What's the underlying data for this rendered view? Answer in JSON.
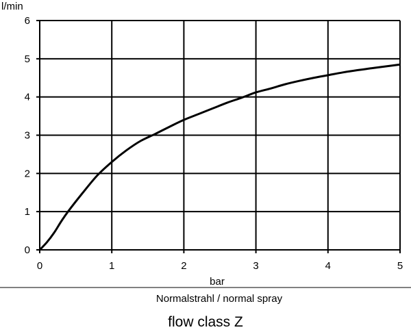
{
  "chart_data": {
    "type": "line",
    "xlabel": "bar",
    "ylabel": "l/min",
    "xlim": [
      0,
      5
    ],
    "ylim": [
      0,
      6
    ],
    "xticks": [
      "0",
      "1",
      "2",
      "3",
      "4",
      "5"
    ],
    "yticks": [
      "0",
      "1",
      "2",
      "3",
      "4",
      "5",
      "6"
    ],
    "grid": true,
    "series": [
      {
        "x": [
          0,
          0.1,
          0.2,
          0.3,
          0.4,
          0.6,
          0.8,
          1.0,
          1.2,
          1.4,
          1.6,
          1.8,
          2.0,
          2.2,
          2.4,
          2.6,
          2.8,
          3.0,
          3.2,
          3.4,
          3.6,
          3.8,
          4.0,
          4.2,
          4.4,
          4.6,
          4.8,
          5.0
        ],
        "y": [
          0,
          0.2,
          0.45,
          0.75,
          1.02,
          1.5,
          1.95,
          2.3,
          2.6,
          2.85,
          3.03,
          3.22,
          3.4,
          3.55,
          3.7,
          3.85,
          3.98,
          4.12,
          4.22,
          4.33,
          4.42,
          4.5,
          4.57,
          4.64,
          4.7,
          4.75,
          4.8,
          4.85
        ]
      }
    ],
    "subtitle": "Normalstrahl / normal spray",
    "title": "flow class Z"
  }
}
